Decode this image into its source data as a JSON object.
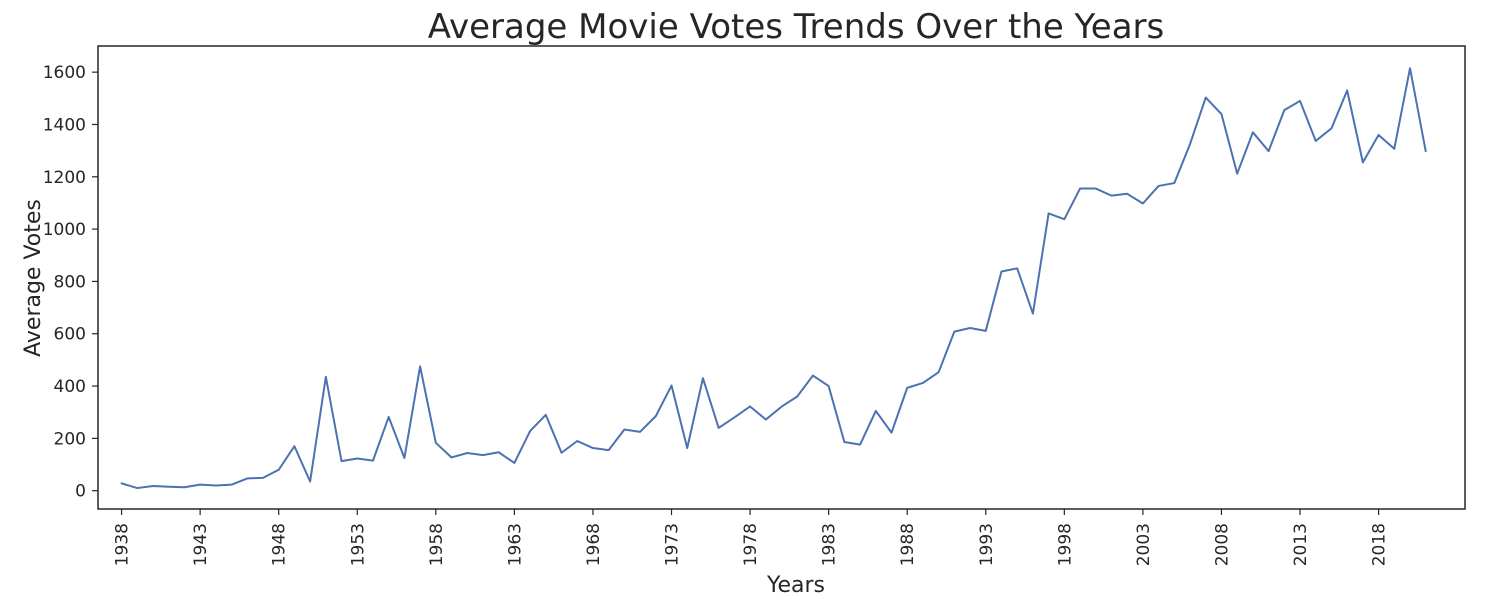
{
  "chart_data": {
    "type": "line",
    "title": "Average Movie Votes Trends Over the Years",
    "xlabel": "Years",
    "ylabel": "Average Votes",
    "x_tick_labels": [
      "1938",
      "1943",
      "1948",
      "1953",
      "1958",
      "1963",
      "1968",
      "1973",
      "1978",
      "1983",
      "1988",
      "1993",
      "1998",
      "2003",
      "2008",
      "2013",
      "2018"
    ],
    "y_tick_labels": [
      "0",
      "200",
      "400",
      "600",
      "800",
      "1000",
      "1200",
      "1400",
      "1600"
    ],
    "xlim": [
      1936.5,
      2023.5
    ],
    "ylim": [
      -70,
      1700
    ],
    "grid": false,
    "line_color": "#4c72b0",
    "series": [
      {
        "x": [
          1938,
          1939,
          1940,
          1941,
          1942,
          1943,
          1944,
          1945,
          1946,
          1947,
          1948,
          1949,
          1950,
          1951,
          1952,
          1953,
          1954,
          1955,
          1956,
          1957,
          1958,
          1959,
          1960,
          1961,
          1962,
          1963,
          1964,
          1965,
          1966,
          1967,
          1968,
          1969,
          1970,
          1971,
          1972,
          1973,
          1974,
          1975,
          1976,
          1977,
          1978,
          1979,
          1980,
          1981,
          1982,
          1983,
          1984,
          1985,
          1986,
          1987,
          1988,
          1989,
          1990,
          1991,
          1992,
          1993,
          1994,
          1995,
          1996,
          1997,
          1998,
          1999,
          2000,
          2001,
          2002,
          2003,
          2004,
          2005,
          2006,
          2007,
          2008,
          2009,
          2010,
          2011,
          2012,
          2013,
          2014,
          2015,
          2016,
          2017,
          2018,
          2019,
          2020,
          2021
        ],
        "y": [
          28,
          10,
          18,
          15,
          13,
          23,
          20,
          23,
          47,
          49,
          80,
          170,
          35,
          435,
          113,
          123,
          115,
          282,
          125,
          475,
          183,
          127,
          144,
          136,
          147,
          106,
          228,
          290,
          145,
          190,
          163,
          155,
          234,
          225,
          285,
          402,
          163,
          430,
          240,
          280,
          322,
          272,
          321,
          360,
          440,
          400,
          186,
          176,
          305,
          222,
          393,
          412,
          453,
          608,
          622,
          611,
          838,
          850,
          677,
          1060,
          1038,
          1155,
          1155,
          1128,
          1135,
          1098,
          1165,
          1176,
          1325,
          1503,
          1440,
          1212,
          1370,
          1298,
          1455,
          1490,
          1337,
          1385,
          1530,
          1255,
          1360,
          1307,
          1615,
          1298
        ]
      }
    ]
  }
}
